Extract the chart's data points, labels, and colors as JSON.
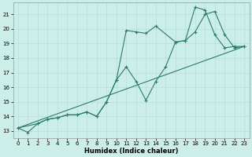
{
  "xlabel": "Humidex (Indice chaleur)",
  "bg_color": "#cceee8",
  "grid_color": "#b8ddd8",
  "line_color": "#2d7a6e",
  "xlim": [
    -0.5,
    23.5
  ],
  "ylim": [
    12.5,
    21.8
  ],
  "xticks": [
    0,
    1,
    2,
    3,
    4,
    5,
    6,
    7,
    8,
    9,
    10,
    11,
    12,
    13,
    14,
    15,
    16,
    17,
    18,
    19,
    20,
    21,
    22,
    23
  ],
  "yticks": [
    13,
    14,
    15,
    16,
    17,
    18,
    19,
    20,
    21
  ],
  "line1_x": [
    0,
    1,
    2,
    3,
    4,
    5,
    6,
    7,
    8,
    9,
    10,
    11,
    12,
    13,
    14,
    16,
    17,
    18,
    19,
    20,
    21,
    22,
    23
  ],
  "line1_y": [
    13.2,
    12.9,
    13.5,
    13.8,
    13.9,
    14.1,
    14.1,
    14.3,
    14.0,
    15.0,
    16.5,
    19.9,
    19.8,
    19.7,
    20.2,
    19.1,
    19.2,
    21.5,
    21.3,
    19.6,
    18.7,
    18.8,
    18.8
  ],
  "line2_x": [
    0,
    2,
    3,
    4,
    5,
    6,
    7,
    8,
    9,
    10,
    11,
    12,
    13,
    14,
    15,
    16,
    17,
    18,
    19,
    20,
    21,
    22,
    23
  ],
  "line2_y": [
    13.2,
    13.5,
    13.8,
    13.9,
    14.1,
    14.1,
    14.3,
    14.0,
    15.0,
    16.5,
    17.4,
    16.4,
    15.1,
    16.4,
    17.4,
    19.1,
    19.2,
    19.8,
    21.0,
    21.2,
    19.6,
    18.7,
    18.8
  ],
  "line3_x": [
    0,
    23
  ],
  "line3_y": [
    13.2,
    18.8
  ]
}
